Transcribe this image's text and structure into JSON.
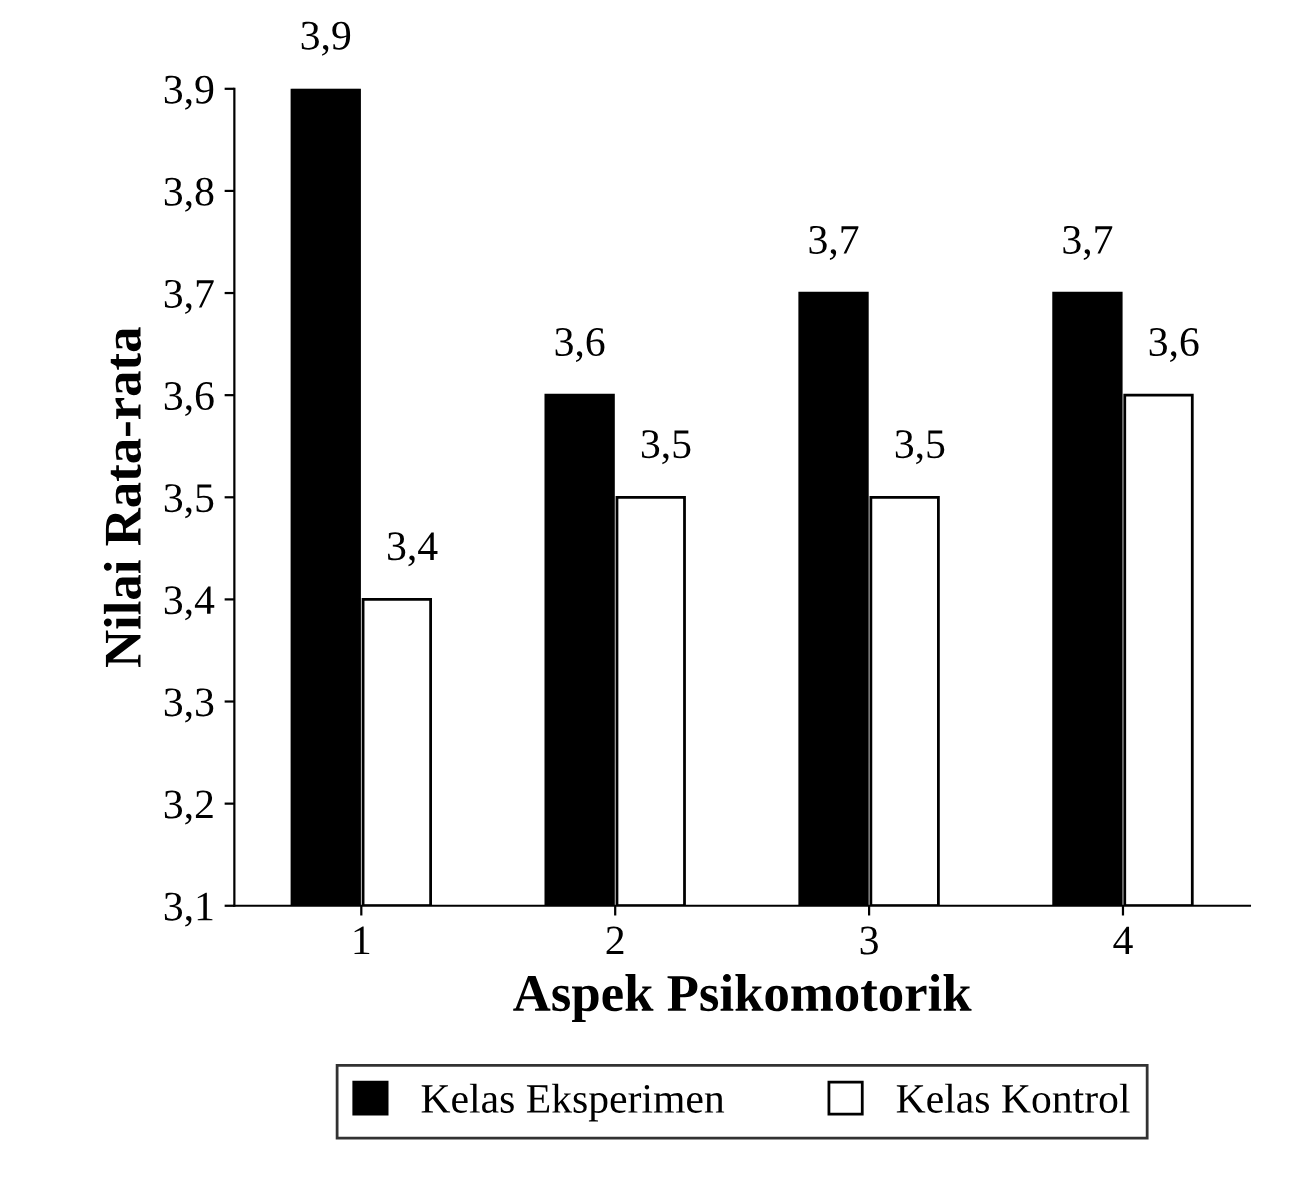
{
  "chart_data": {
    "type": "bar",
    "xlabel": "Aspek Psikomotorik",
    "ylabel": "Nilai Rata-rata",
    "categories": [
      "1",
      "2",
      "3",
      "4"
    ],
    "series": [
      {
        "name": "Kelas Eksperimen",
        "color": "#000000",
        "values": [
          3.9,
          3.6,
          3.7,
          3.7
        ],
        "value_labels": [
          "3,9",
          "3,6",
          "3,7",
          "3,7"
        ]
      },
      {
        "name": "Kelas Kontrol",
        "color": "#ffffff",
        "values": [
          3.4,
          3.5,
          3.5,
          3.6
        ],
        "value_labels": [
          "3,4",
          "3,5",
          "3,5",
          "3,6"
        ]
      }
    ],
    "ylim": [
      3.1,
      3.9
    ],
    "yticks": [
      {
        "value": 3.1,
        "label": "3,1"
      },
      {
        "value": 3.2,
        "label": "3,2"
      },
      {
        "value": 3.3,
        "label": "3,3"
      },
      {
        "value": 3.4,
        "label": "3,4"
      },
      {
        "value": 3.5,
        "label": "3,5"
      },
      {
        "value": 3.6,
        "label": "3,6"
      },
      {
        "value": 3.7,
        "label": "3,7"
      },
      {
        "value": 3.8,
        "label": "3,8"
      },
      {
        "value": 3.9,
        "label": "3,9"
      }
    ],
    "grid": false,
    "legend": "bottom"
  }
}
